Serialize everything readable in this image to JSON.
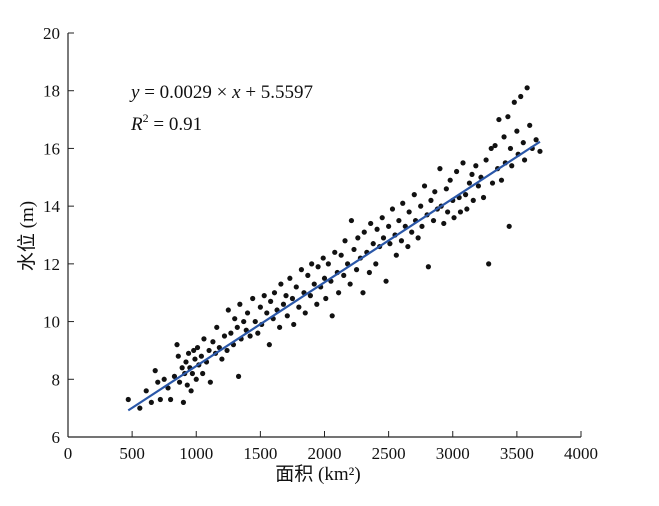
{
  "chart_data": {
    "type": "scatter",
    "title": "",
    "xlabel": "面积 (km²)",
    "ylabel": "水位 (m)",
    "xlim": [
      0,
      4000
    ],
    "ylim": [
      6,
      20
    ],
    "x_ticks": [
      0,
      500,
      1000,
      1500,
      2000,
      2500,
      3000,
      3500,
      4000
    ],
    "y_ticks": [
      6,
      8,
      10,
      12,
      14,
      16,
      18,
      20
    ],
    "x_tick_labels": [
      "0",
      "500",
      "1000",
      "1500",
      "2000",
      "2500",
      "3000",
      "3500",
      "4000"
    ],
    "y_tick_labels": [
      "6",
      "8",
      "10",
      "12",
      "14",
      "16",
      "18",
      "20"
    ],
    "grid": false,
    "colors": {
      "points": "#111111",
      "fit_line": "#2a57a8",
      "axes": "#222222"
    },
    "fit": {
      "slope": 0.0029,
      "intercept": 5.5597,
      "x_range": [
        470,
        3680
      ],
      "equation_text": {
        "y": "y",
        "eq_part": " = 0.0029 × ",
        "x": "x",
        "rest": " + 5.5597"
      },
      "r2_text": {
        "r": "R",
        "sup": "2",
        "rest": " = 0.91"
      }
    },
    "series": [
      {
        "points": [
          [
            470,
            7.3
          ],
          [
            560,
            7.0
          ],
          [
            610,
            7.6
          ],
          [
            650,
            7.2
          ],
          [
            680,
            8.3
          ],
          [
            700,
            7.9
          ],
          [
            720,
            7.3
          ],
          [
            750,
            8.0
          ],
          [
            780,
            7.7
          ],
          [
            800,
            7.3
          ],
          [
            830,
            8.1
          ],
          [
            850,
            9.2
          ],
          [
            860,
            8.8
          ],
          [
            870,
            7.9
          ],
          [
            890,
            8.4
          ],
          [
            900,
            7.2
          ],
          [
            910,
            8.2
          ],
          [
            920,
            8.6
          ],
          [
            930,
            7.8
          ],
          [
            940,
            8.9
          ],
          [
            950,
            8.4
          ],
          [
            960,
            7.6
          ],
          [
            970,
            8.2
          ],
          [
            980,
            9.0
          ],
          [
            990,
            8.7
          ],
          [
            1000,
            8.0
          ],
          [
            1010,
            9.1
          ],
          [
            1020,
            8.5
          ],
          [
            1040,
            8.8
          ],
          [
            1050,
            8.2
          ],
          [
            1060,
            9.4
          ],
          [
            1080,
            8.6
          ],
          [
            1100,
            9.0
          ],
          [
            1110,
            7.9
          ],
          [
            1130,
            9.3
          ],
          [
            1150,
            8.9
          ],
          [
            1160,
            9.8
          ],
          [
            1180,
            9.1
          ],
          [
            1200,
            8.7
          ],
          [
            1220,
            9.5
          ],
          [
            1240,
            9.0
          ],
          [
            1250,
            10.4
          ],
          [
            1270,
            9.6
          ],
          [
            1290,
            9.2
          ],
          [
            1300,
            10.1
          ],
          [
            1320,
            9.8
          ],
          [
            1330,
            8.1
          ],
          [
            1340,
            10.6
          ],
          [
            1350,
            9.4
          ],
          [
            1370,
            10.0
          ],
          [
            1390,
            9.7
          ],
          [
            1400,
            10.3
          ],
          [
            1420,
            9.5
          ],
          [
            1440,
            10.8
          ],
          [
            1460,
            10.0
          ],
          [
            1480,
            9.6
          ],
          [
            1500,
            10.5
          ],
          [
            1510,
            9.9
          ],
          [
            1530,
            10.9
          ],
          [
            1550,
            10.3
          ],
          [
            1570,
            9.2
          ],
          [
            1580,
            10.7
          ],
          [
            1600,
            10.1
          ],
          [
            1610,
            11.0
          ],
          [
            1630,
            10.4
          ],
          [
            1650,
            9.8
          ],
          [
            1660,
            11.3
          ],
          [
            1680,
            10.6
          ],
          [
            1700,
            10.9
          ],
          [
            1710,
            10.2
          ],
          [
            1730,
            11.5
          ],
          [
            1750,
            10.8
          ],
          [
            1760,
            9.9
          ],
          [
            1780,
            11.2
          ],
          [
            1800,
            10.5
          ],
          [
            1820,
            11.8
          ],
          [
            1840,
            11.0
          ],
          [
            1850,
            10.3
          ],
          [
            1870,
            11.6
          ],
          [
            1890,
            10.9
          ],
          [
            1900,
            12.0
          ],
          [
            1920,
            11.3
          ],
          [
            1940,
            10.6
          ],
          [
            1950,
            11.9
          ],
          [
            1970,
            11.2
          ],
          [
            1990,
            12.2
          ],
          [
            2000,
            11.5
          ],
          [
            2010,
            10.8
          ],
          [
            2030,
            12.0
          ],
          [
            2050,
            11.4
          ],
          [
            2060,
            10.2
          ],
          [
            2080,
            12.4
          ],
          [
            2100,
            11.7
          ],
          [
            2110,
            11.0
          ],
          [
            2130,
            12.3
          ],
          [
            2150,
            11.6
          ],
          [
            2160,
            12.8
          ],
          [
            2180,
            12.0
          ],
          [
            2200,
            11.3
          ],
          [
            2210,
            13.5
          ],
          [
            2230,
            12.5
          ],
          [
            2250,
            11.8
          ],
          [
            2260,
            12.9
          ],
          [
            2280,
            12.2
          ],
          [
            2300,
            11.0
          ],
          [
            2310,
            13.1
          ],
          [
            2330,
            12.4
          ],
          [
            2350,
            11.7
          ],
          [
            2360,
            13.4
          ],
          [
            2380,
            12.7
          ],
          [
            2400,
            12.0
          ],
          [
            2410,
            13.2
          ],
          [
            2430,
            12.6
          ],
          [
            2450,
            13.6
          ],
          [
            2460,
            12.9
          ],
          [
            2480,
            11.4
          ],
          [
            2500,
            13.3
          ],
          [
            2510,
            12.7
          ],
          [
            2530,
            13.9
          ],
          [
            2550,
            13.0
          ],
          [
            2560,
            12.3
          ],
          [
            2580,
            13.5
          ],
          [
            2600,
            12.8
          ],
          [
            2610,
            14.1
          ],
          [
            2630,
            13.3
          ],
          [
            2650,
            12.6
          ],
          [
            2660,
            13.8
          ],
          [
            2680,
            13.1
          ],
          [
            2700,
            14.4
          ],
          [
            2710,
            13.5
          ],
          [
            2730,
            12.9
          ],
          [
            2750,
            14.0
          ],
          [
            2760,
            13.3
          ],
          [
            2780,
            14.7
          ],
          [
            2800,
            13.7
          ],
          [
            2810,
            11.9
          ],
          [
            2830,
            14.2
          ],
          [
            2850,
            13.5
          ],
          [
            2860,
            14.5
          ],
          [
            2880,
            13.9
          ],
          [
            2900,
            15.3
          ],
          [
            2910,
            14.0
          ],
          [
            2930,
            13.4
          ],
          [
            2950,
            14.6
          ],
          [
            2960,
            13.8
          ],
          [
            2980,
            14.9
          ],
          [
            3000,
            14.2
          ],
          [
            3010,
            13.6
          ],
          [
            3030,
            15.2
          ],
          [
            3050,
            14.3
          ],
          [
            3060,
            13.8
          ],
          [
            3080,
            15.5
          ],
          [
            3100,
            14.4
          ],
          [
            3110,
            13.9
          ],
          [
            3130,
            14.8
          ],
          [
            3150,
            15.1
          ],
          [
            3160,
            14.2
          ],
          [
            3180,
            15.4
          ],
          [
            3200,
            14.7
          ],
          [
            3220,
            15.0
          ],
          [
            3240,
            14.3
          ],
          [
            3260,
            15.6
          ],
          [
            3280,
            12.0
          ],
          [
            3300,
            16.0
          ],
          [
            3310,
            14.8
          ],
          [
            3330,
            16.1
          ],
          [
            3350,
            15.3
          ],
          [
            3360,
            17.0
          ],
          [
            3380,
            14.9
          ],
          [
            3400,
            16.4
          ],
          [
            3410,
            15.5
          ],
          [
            3430,
            17.1
          ],
          [
            3440,
            13.3
          ],
          [
            3450,
            16.0
          ],
          [
            3460,
            15.4
          ],
          [
            3480,
            17.6
          ],
          [
            3500,
            16.6
          ],
          [
            3510,
            15.8
          ],
          [
            3530,
            17.8
          ],
          [
            3550,
            16.2
          ],
          [
            3560,
            15.6
          ],
          [
            3580,
            18.1
          ],
          [
            3600,
            16.8
          ],
          [
            3620,
            16.0
          ],
          [
            3650,
            16.3
          ],
          [
            3680,
            15.9
          ]
        ]
      }
    ]
  }
}
